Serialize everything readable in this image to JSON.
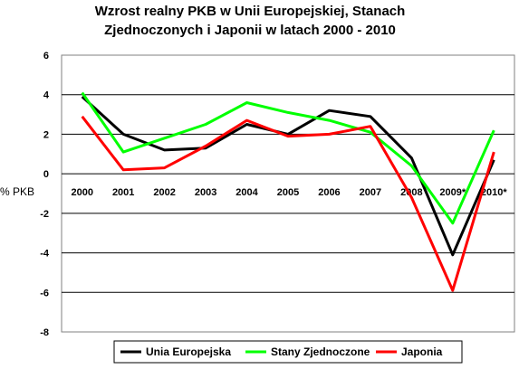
{
  "chart_data": {
    "type": "line",
    "title_lines": [
      "Wzrost realny PKB w Unii Europejskiej, Stanach",
      "Zjednoczonych i Japonii w latach 2000 - 2010"
    ],
    "ylabel": "% PKB",
    "categories": [
      "2000",
      "2001",
      "2002",
      "2003",
      "2004",
      "2005",
      "2006",
      "2007",
      "2008",
      "2009*",
      "2010*"
    ],
    "ylim": [
      -8,
      6
    ],
    "yticks": [
      "6",
      "4",
      "2",
      "0",
      "-2",
      "-4",
      "-6",
      "-8"
    ],
    "grid": true,
    "legend_position": "bottom",
    "series": [
      {
        "name": "Unia Europejska",
        "color": "#000000",
        "values": [
          3.9,
          2.0,
          1.2,
          1.3,
          2.5,
          2.0,
          3.2,
          2.9,
          0.8,
          -4.1,
          0.7
        ]
      },
      {
        "name": "Stany Zjednoczone",
        "color": "#00ff00",
        "values": [
          4.1,
          1.1,
          1.8,
          2.5,
          3.6,
          3.1,
          2.7,
          2.1,
          0.4,
          -2.5,
          2.2
        ]
      },
      {
        "name": "Japonia",
        "color": "#ff0000",
        "values": [
          2.9,
          0.2,
          0.3,
          1.4,
          2.7,
          1.9,
          2.0,
          2.4,
          -1.2,
          -5.9,
          1.1
        ]
      }
    ]
  }
}
